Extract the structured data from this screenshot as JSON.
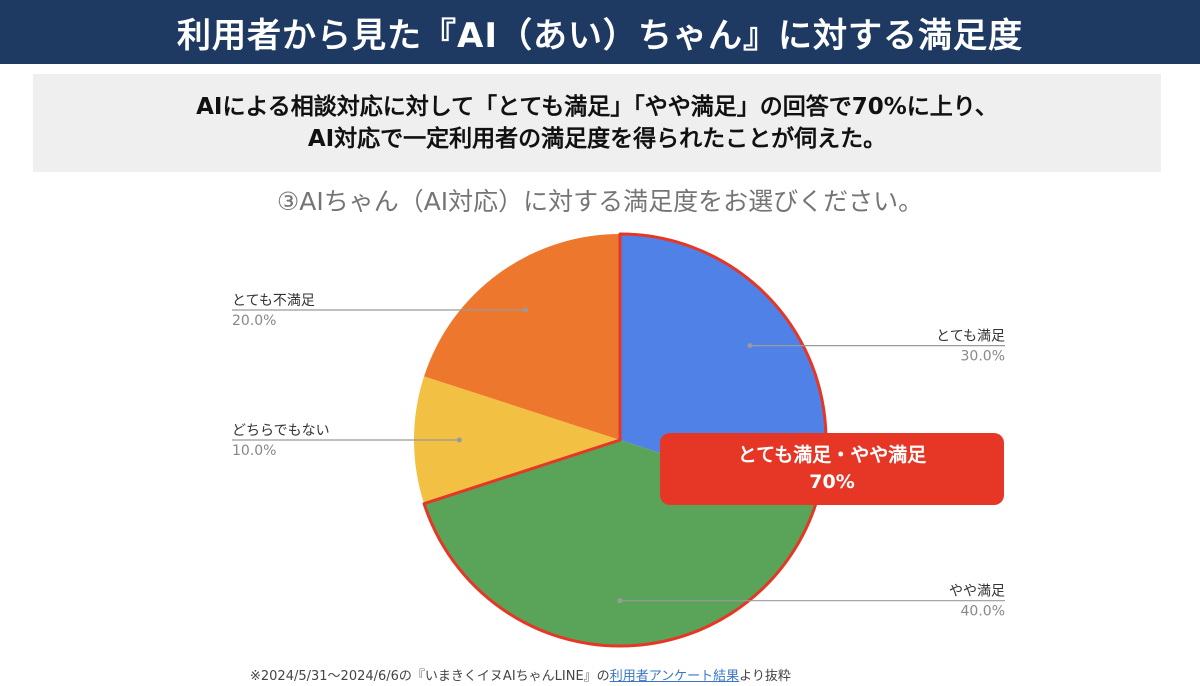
{
  "header": {
    "title": "利用者から見た『AI（あい）ちゃん』に対する満足度"
  },
  "summary": {
    "line1": "AIによる相談対応に対して「とても満足」「やや満足」の回答で70%に上り、",
    "line2": "AI対応で一定利用者の満足度を得られたことが伺えた。"
  },
  "callout": {
    "line1": "とても満足・やや満足",
    "line2": "70%"
  },
  "footnote": {
    "prefix": "※2024/5/31～2024/6/6の『いまきくイヌAIちゃんLINE』の",
    "link": "利用者アンケート結果",
    "suffix": "より抜粋"
  },
  "colors": {
    "header_bg": "#1e3a63",
    "highlight": "#e63626",
    "blue": "#4f81e6",
    "green": "#5aa45a",
    "yellow": "#f2c043",
    "orange": "#ec772d"
  },
  "chart_data": {
    "type": "pie",
    "title": "③AIちゃん（AI対応）に対する満足度をお選びください。",
    "start_angle_deg": 0,
    "direction": "clockwise",
    "slices": [
      {
        "label": "とても満足",
        "value": 30,
        "pct_label": "30.0%",
        "color": "#4f81e6",
        "key": "very-satisfied",
        "side": "right"
      },
      {
        "label": "やや満足",
        "value": 40,
        "pct_label": "40.0%",
        "color": "#5aa45a",
        "key": "somewhat-satisfied",
        "side": "right"
      },
      {
        "label": "どちらでもない",
        "value": 10,
        "pct_label": "10.0%",
        "color": "#f2c043",
        "key": "neutral",
        "side": "left"
      },
      {
        "label": "とても不満足",
        "value": 20,
        "pct_label": "20.0%",
        "color": "#ec772d",
        "key": "very-dissatisfied",
        "side": "left"
      }
    ],
    "highlighted": [
      "とても満足",
      "やや満足"
    ],
    "highlight_color": "#e63626"
  }
}
